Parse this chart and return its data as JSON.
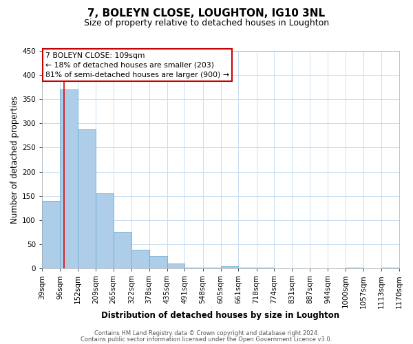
{
  "title": "7, BOLEYN CLOSE, LOUGHTON, IG10 3NL",
  "subtitle": "Size of property relative to detached houses in Loughton",
  "xlabel": "Distribution of detached houses by size in Loughton",
  "ylabel": "Number of detached properties",
  "bar_color": "#aecde8",
  "bar_edge_color": "#6aafd6",
  "bin_labels": [
    "39sqm",
    "96sqm",
    "152sqm",
    "209sqm",
    "265sqm",
    "322sqm",
    "378sqm",
    "435sqm",
    "491sqm",
    "548sqm",
    "605sqm",
    "661sqm",
    "718sqm",
    "774sqm",
    "831sqm",
    "887sqm",
    "944sqm",
    "1000sqm",
    "1057sqm",
    "1113sqm",
    "1170sqm"
  ],
  "bar_values": [
    140,
    370,
    287,
    155,
    75,
    38,
    25,
    10,
    2,
    1,
    5,
    2,
    1,
    0,
    0,
    0,
    0,
    2,
    0,
    2,
    0
  ],
  "bin_edges": [
    39,
    96,
    152,
    209,
    265,
    322,
    378,
    435,
    491,
    548,
    605,
    661,
    718,
    774,
    831,
    887,
    944,
    1000,
    1057,
    1113,
    1170
  ],
  "property_size": 109,
  "red_line_color": "#dd0000",
  "ylim": [
    0,
    450
  ],
  "yticks": [
    0,
    50,
    100,
    150,
    200,
    250,
    300,
    350,
    400,
    450
  ],
  "annotation_title": "7 BOLEYN CLOSE: 109sqm",
  "annotation_line1": "← 18% of detached houses are smaller (203)",
  "annotation_line2": "81% of semi-detached houses are larger (900) →",
  "annotation_box_color": "#ffffff",
  "annotation_box_edge": "#cc0000",
  "footer1": "Contains HM Land Registry data © Crown copyright and database right 2024.",
  "footer2": "Contains public sector information licensed under the Open Government Licence v3.0.",
  "background_color": "#ffffff",
  "grid_color": "#c8ddf0",
  "title_fontsize": 11,
  "subtitle_fontsize": 9,
  "axis_label_fontsize": 8.5,
  "tick_fontsize": 7.5,
  "annotation_fontsize": 7.8,
  "footer_fontsize": 6.0
}
